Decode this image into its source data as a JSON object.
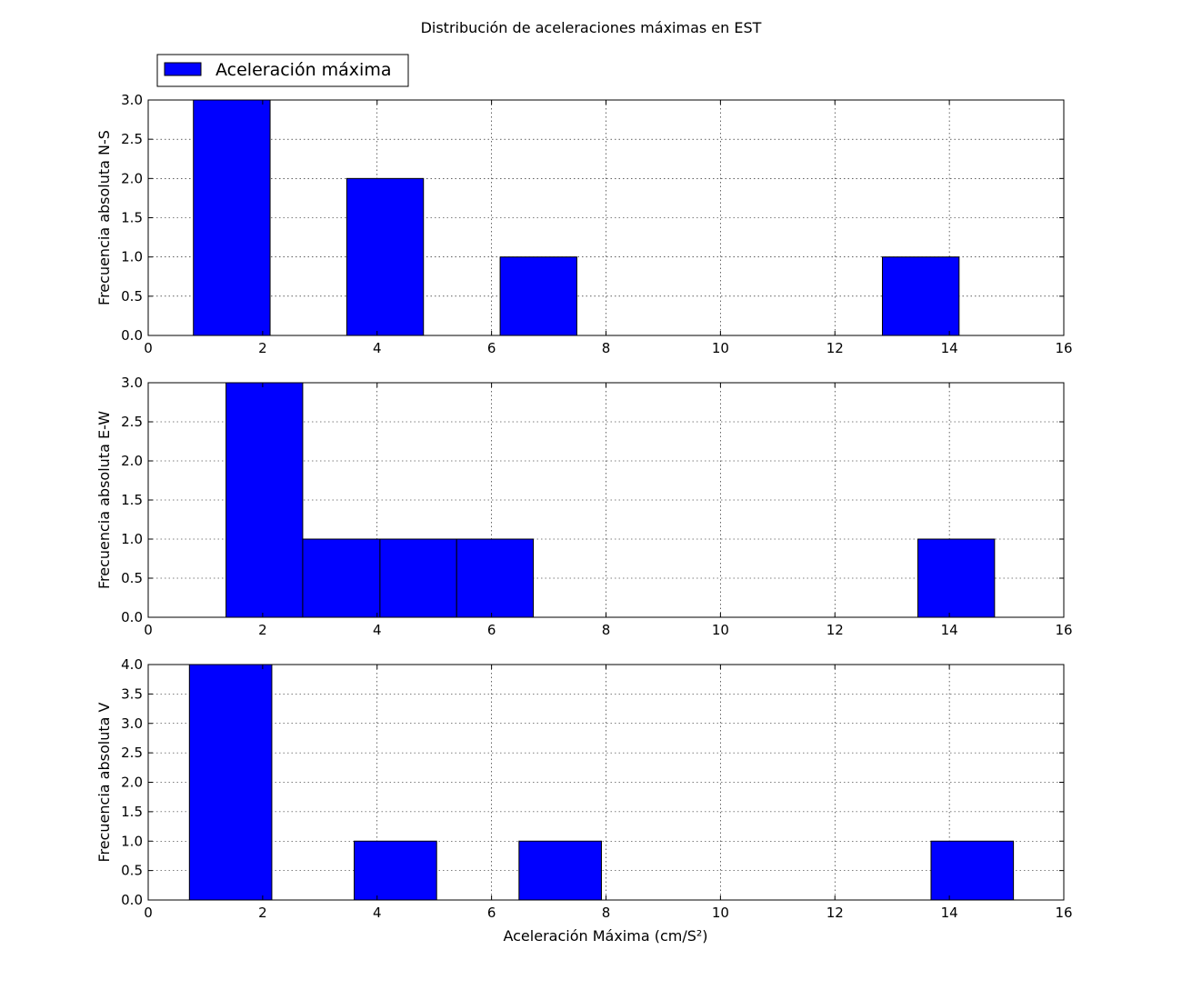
{
  "figure": {
    "title": "Distribución de aceleraciones máximas en EST",
    "legend": {
      "label": "Aceleración máxima",
      "placement": "top-left, above plots",
      "color": "#0000ff"
    },
    "xlabel": "Aceleración Máxima (cm/S²)"
  },
  "chart_data": [
    {
      "type": "bar",
      "subtype": "histogram",
      "title": "",
      "ylabel": "Frecuencia absoluta N-S",
      "xlabel": "",
      "xlim": [
        0,
        16
      ],
      "ylim": [
        0,
        3.0
      ],
      "xticks": [
        0,
        2,
        4,
        6,
        8,
        10,
        12,
        14,
        16
      ],
      "yticks": [
        0.0,
        0.5,
        1.0,
        1.5,
        2.0,
        2.5,
        3.0
      ],
      "grid": true,
      "bars": [
        {
          "x0": 0.79,
          "x1": 2.13,
          "value": 3
        },
        {
          "x0": 3.47,
          "x1": 4.81,
          "value": 2
        },
        {
          "x0": 6.15,
          "x1": 7.49,
          "value": 1
        },
        {
          "x0": 12.83,
          "x1": 14.17,
          "value": 1
        }
      ],
      "color": "#0000ff"
    },
    {
      "type": "bar",
      "subtype": "histogram",
      "title": "",
      "ylabel": "Frecuencia absoluta E-W",
      "xlabel": "",
      "xlim": [
        0,
        16
      ],
      "ylim": [
        0,
        3.0
      ],
      "xticks": [
        0,
        2,
        4,
        6,
        8,
        10,
        12,
        14,
        16
      ],
      "yticks": [
        0.0,
        0.5,
        1.0,
        1.5,
        2.0,
        2.5,
        3.0
      ],
      "grid": true,
      "bars": [
        {
          "x0": 1.36,
          "x1": 2.7,
          "value": 3
        },
        {
          "x0": 2.7,
          "x1": 4.05,
          "value": 1
        },
        {
          "x0": 4.05,
          "x1": 5.39,
          "value": 1
        },
        {
          "x0": 5.39,
          "x1": 6.73,
          "value": 1
        },
        {
          "x0": 13.45,
          "x1": 14.79,
          "value": 1
        }
      ],
      "color": "#0000ff"
    },
    {
      "type": "bar",
      "subtype": "histogram",
      "title": "",
      "ylabel": "Frecuencia absoluta V",
      "xlabel": "Aceleración Máxima (cm/S²)",
      "xlim": [
        0,
        16
      ],
      "ylim": [
        0,
        4.0
      ],
      "xticks": [
        0,
        2,
        4,
        6,
        8,
        10,
        12,
        14,
        16
      ],
      "yticks": [
        0.0,
        0.5,
        1.0,
        1.5,
        2.0,
        2.5,
        3.0,
        3.5,
        4.0
      ],
      "grid": true,
      "bars": [
        {
          "x0": 0.72,
          "x1": 2.16,
          "value": 4
        },
        {
          "x0": 3.6,
          "x1": 5.04,
          "value": 1
        },
        {
          "x0": 6.48,
          "x1": 7.92,
          "value": 1
        },
        {
          "x0": 13.68,
          "x1": 15.12,
          "value": 1
        }
      ],
      "color": "#0000ff"
    }
  ]
}
